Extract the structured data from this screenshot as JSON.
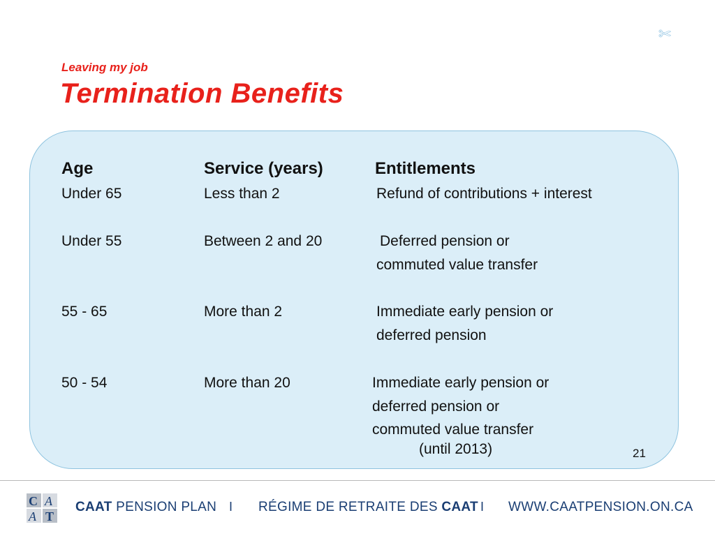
{
  "slide": {
    "subtitle": "Leaving my job",
    "title": "Termination Benefits",
    "page_number": "21",
    "corner_icon": "scissors-icon"
  },
  "table": {
    "headers": {
      "age": "Age",
      "service": "Service (years)",
      "entitlements": "Entitlements"
    },
    "rows": [
      {
        "age": "Under 65",
        "service": "Less than 2",
        "entitlements": [
          "Refund of contributions + interest"
        ]
      },
      {
        "age": "Under 55",
        "service": "Between 2 and 20",
        "entitlements": [
          "Deferred pension or",
          "commuted value transfer"
        ]
      },
      {
        "age": "55 - 65",
        "service": "More than 2",
        "entitlements": [
          "Immediate early pension or",
          "deferred pension"
        ]
      },
      {
        "age": "50 - 54",
        "service": "More than 20",
        "entitlements": [
          "Immediate early pension or",
          "deferred pension or",
          "commuted value transfer",
          "(until 2013)"
        ]
      }
    ]
  },
  "footer": {
    "brand_bold": "CAAT",
    "brand_rest": " PENSION PLAN",
    "separator": "I",
    "french_rest": "RÉGIME DE RETRAITE DES ",
    "french_bold": "CAAT",
    "website": "WWW.CAATPENSION.ON.CA",
    "logo_icon": "caat-logo-icon"
  },
  "colors": {
    "title_red": "#e8211b",
    "panel_fill": "#dbeef8",
    "panel_border": "#8ec3df",
    "footer_navy": "#1a3e73"
  }
}
